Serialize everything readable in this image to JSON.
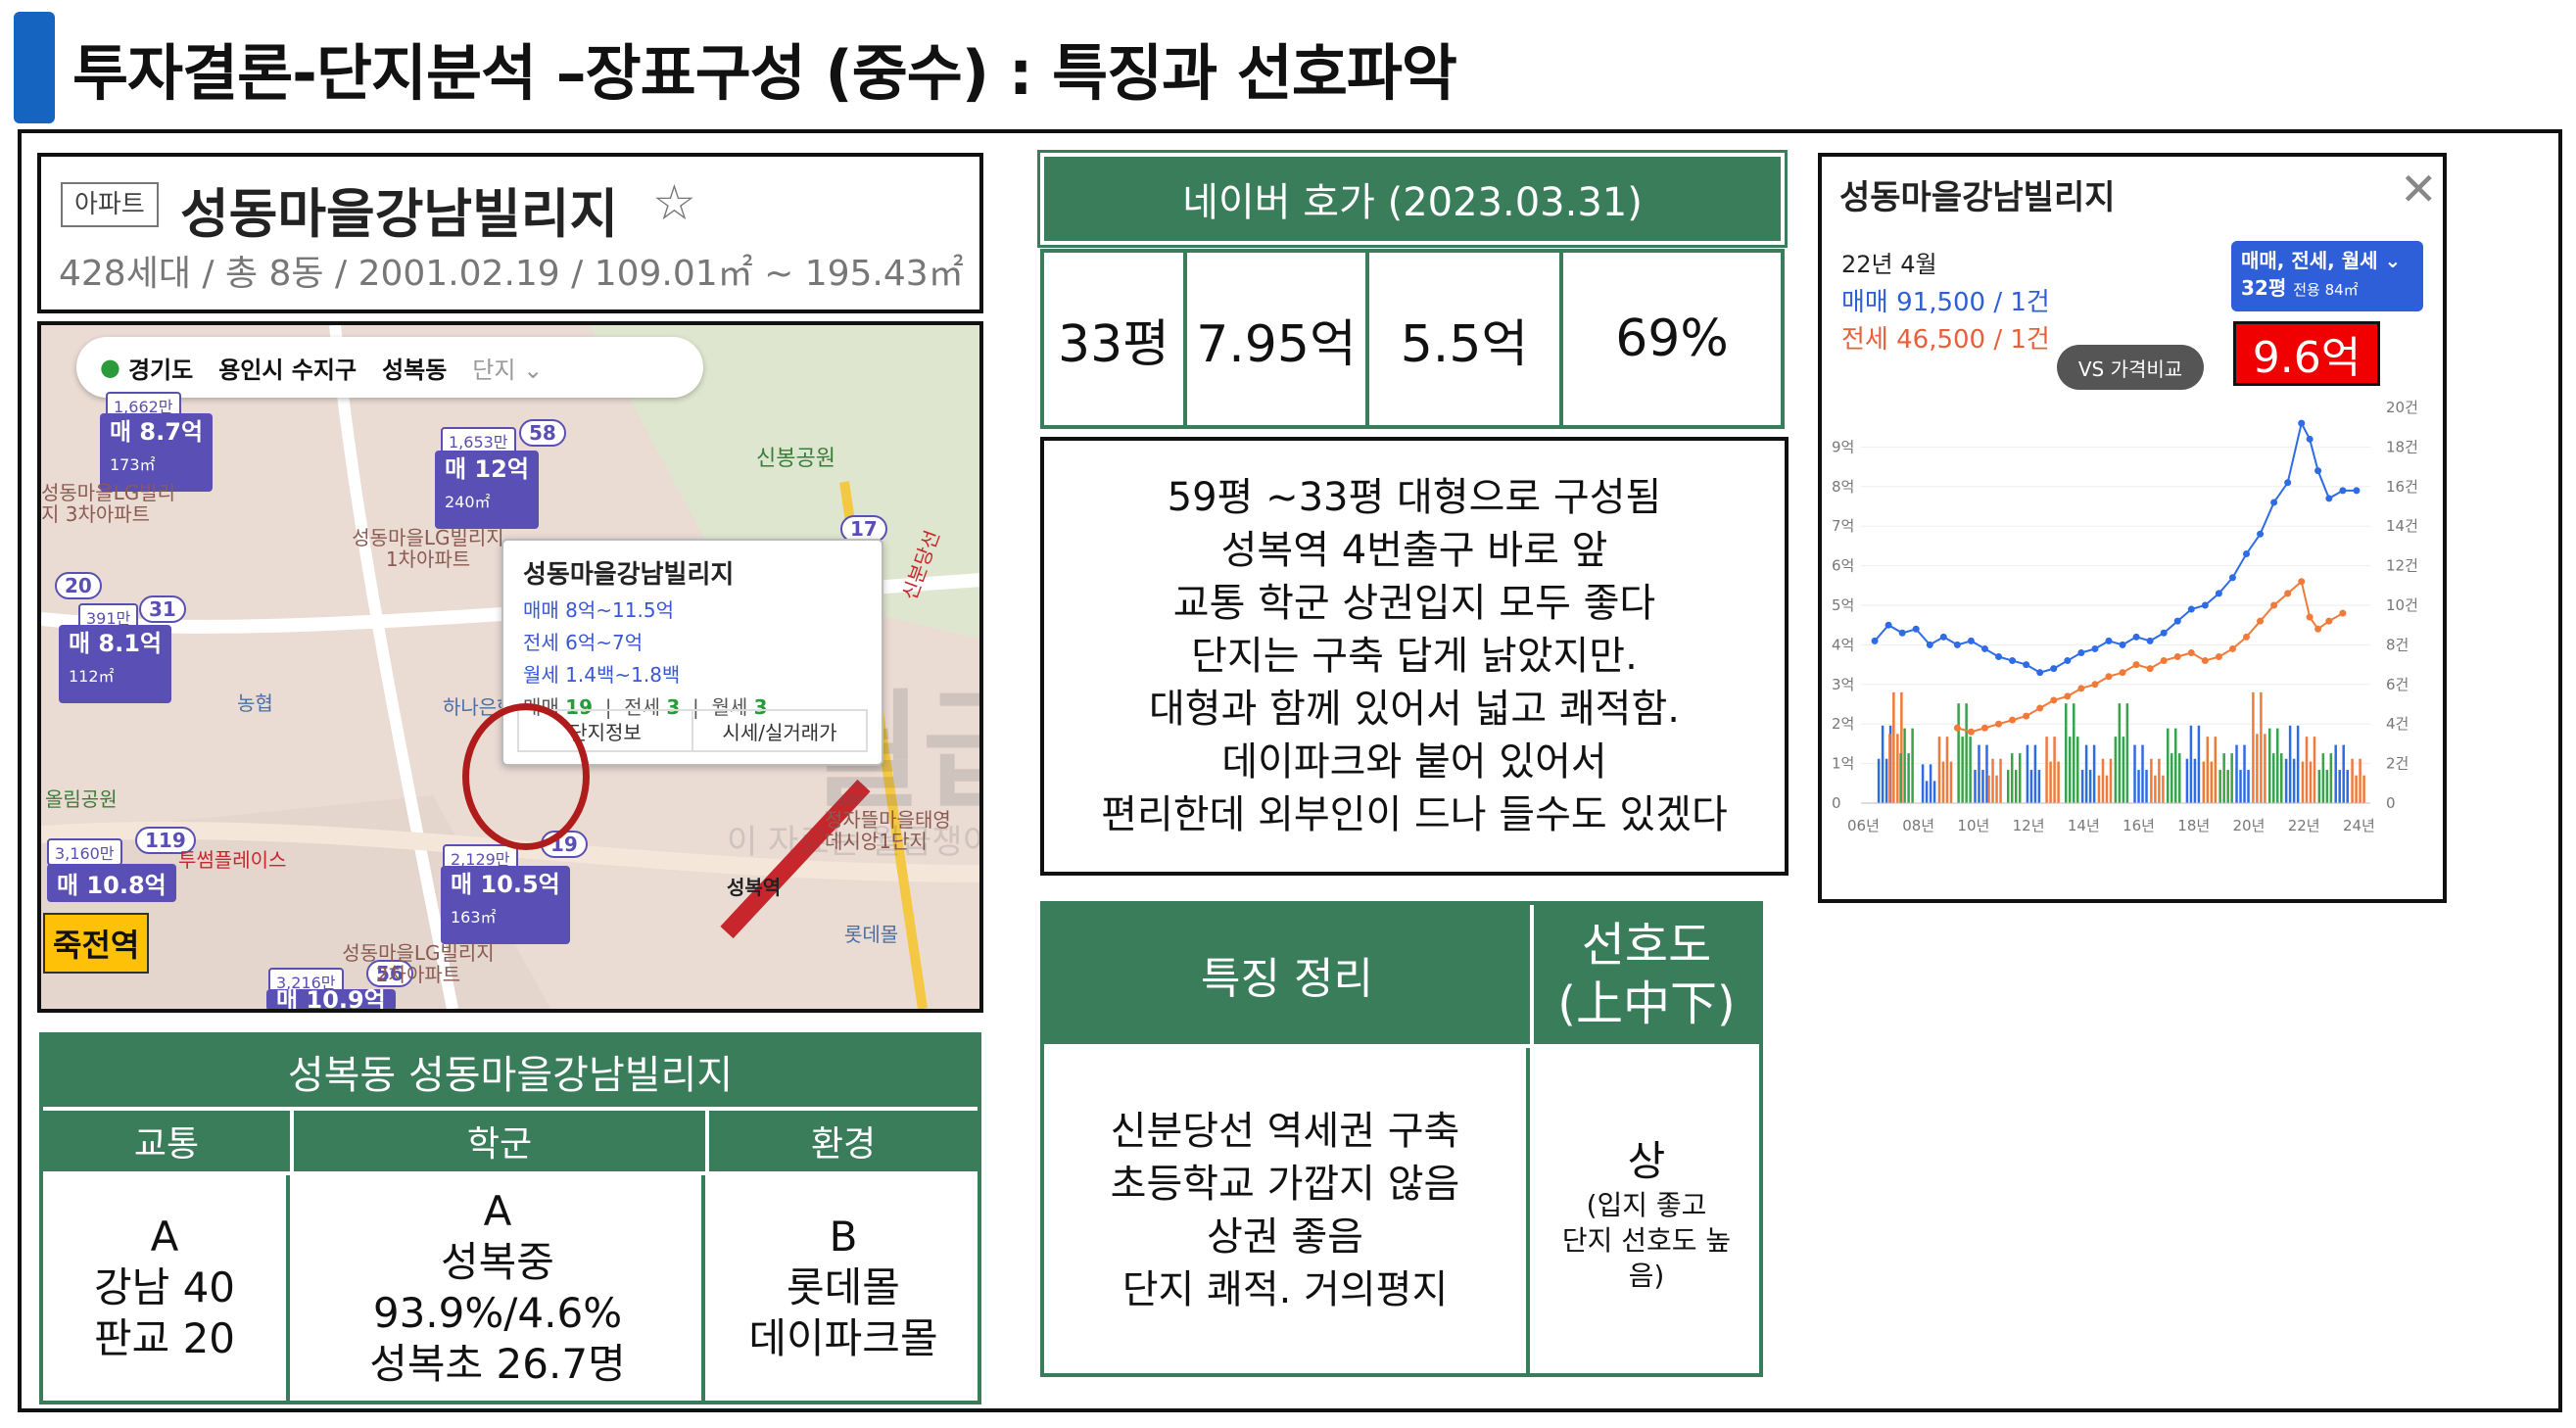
{
  "page": {
    "title": "투자결론-단지분석 –장표구성 (중수) : 특징과 선호파악"
  },
  "complex": {
    "badge": "아파트",
    "name": "성동마을강남빌리지",
    "star_icon": "star-outline-icon",
    "meta": "428세대 / 총 8동 / 2001.02.19 / 109.01㎡ ~ 195.43㎡"
  },
  "map": {
    "breadcrumb": [
      "경기도",
      "용인시 수지구",
      "성복동",
      "단지 ⌄"
    ],
    "popup": {
      "title": "성동마을강남빌리지",
      "sale": "매매 8억~11.5억",
      "jeonse": "전세 6억~7억",
      "monthly": "월세 1.4백~1.8백",
      "count_sale": "19",
      "count_jeonse": "3",
      "count_monthly": "3",
      "count_sale_label": "매매",
      "count_jeonse_label": "전세",
      "count_monthly_label": "월세",
      "btn_info": "단지정보",
      "btn_price": "시세/실거래가"
    },
    "price_tags": [
      {
        "sub": "1,662만",
        "price": "매 8.7억",
        "area": "173㎡"
      },
      {
        "sub": "1,653만",
        "price": "매 12억",
        "area": "240㎡",
        "badge": "58"
      },
      {
        "sub": "391만",
        "price": "매 8.1억",
        "area": "112㎡"
      },
      {
        "sub": "3,160만",
        "price": "매 10.8억",
        "badge": "119"
      },
      {
        "sub": "2,129만",
        "price": "매 10.5억",
        "area": "163㎡",
        "badge": "19"
      },
      {
        "sub": "3,216만",
        "price": "매 10.9억",
        "badge": "56"
      }
    ],
    "badges": [
      "20",
      "31",
      "17"
    ],
    "places": [
      "성동마을LG빌리지 3차아파트",
      "성동마을LG빌리지 1차아파트",
      "신봉공원",
      "농협",
      "하나은행",
      "올림공원",
      "투썸플레이스",
      "성복역",
      "신분당선",
      "롯데몰",
      "성동마을LG빌리지 2차아파트",
      "정자뜰마을태영 데시앙1단지"
    ],
    "station_label": "죽전역",
    "watermark": "월급쟁이부자들",
    "watermark_sub": "이 자료는 월급쟁이부자들의 소중한 자산입니다"
  },
  "score_table": {
    "title": "성복동 성동마을강남빌리지",
    "headers": [
      "교통",
      "학군",
      "환경"
    ],
    "traffic": [
      "A",
      "강남 40",
      "판교 20"
    ],
    "school": [
      "A",
      "성복중",
      "93.9%/4.6%",
      "성복초 26.7명"
    ],
    "environment": [
      "B",
      "롯데몰",
      "데이파크몰"
    ]
  },
  "naver": {
    "header": "네이버 호가 (2023.03.31)",
    "cells": [
      "33평",
      "7.95억",
      "5.5억",
      "69%"
    ]
  },
  "description": [
    "59평 ~33평 대형으로 구성됨",
    "성복역 4번출구 바로 앞",
    "교통 학군 상권입지 모두 좋다",
    "단지는 구축 답게 낡았지만.",
    "대형과 함께 있어서 넓고 쾌적함.",
    "데이파크와 붙어 있어서",
    "편리한데 외부인이 드나 들수도 있겠다"
  ],
  "features": {
    "header": "특징 정리",
    "pref_header_1": "선호도",
    "pref_header_2": "(上中下)",
    "lines": [
      "신분당선  역세권 구축",
      "초등학교 가깝지 않음",
      "상권 좋음",
      "단지 쾌적. 거의평지"
    ],
    "grade": "상",
    "grade_note": [
      "(입지 좋고",
      "단지 선호도 높",
      "음)"
    ]
  },
  "chart_panel": {
    "title": "성동마을강남빌리지",
    "date": "22년 4월",
    "sale": "매매 91,500 / 1건",
    "jeonse": "전세 46,500 / 1건",
    "filter_line1": "매매, 전세, 월세 ⌄",
    "filter_line2": "32평",
    "filter_line2_small": "전용 84㎡",
    "compare_btn": "VS 가격비교",
    "callout": "9.6억"
  },
  "chart_data": {
    "type": "line",
    "title": "성동마을강남빌리지",
    "x": [
      "06년",
      "08년",
      "10년",
      "12년",
      "14년",
      "16년",
      "18년",
      "20년",
      "22년",
      "24년"
    ],
    "y_left_ticks": [
      "0",
      "1억",
      "2억",
      "3억",
      "4억",
      "5억",
      "6억",
      "7억",
      "8억",
      "9억"
    ],
    "y_right_ticks": [
      "0",
      "2건",
      "4건",
      "6건",
      "8건",
      "10건",
      "12건",
      "14건",
      "16건",
      "18건",
      "20건"
    ],
    "ylim": [
      0,
      10
    ],
    "series": [
      {
        "name": "매매",
        "color": "#2e6be6",
        "x": [
          2006.5,
          2007.0,
          2007.5,
          2008.0,
          2008.5,
          2009.0,
          2009.5,
          2010.0,
          2010.5,
          2011.0,
          2011.5,
          2012.0,
          2012.5,
          2013.0,
          2013.5,
          2014.0,
          2014.5,
          2015.0,
          2015.5,
          2016.0,
          2016.5,
          2017.0,
          2017.5,
          2018.0,
          2018.5,
          2019.0,
          2019.5,
          2020.0,
          2020.5,
          2021.0,
          2021.5,
          2022.0,
          2022.3,
          2022.6,
          2023.0,
          2023.5,
          2024.0
        ],
        "values": [
          4.1,
          4.5,
          4.3,
          4.4,
          4.0,
          4.2,
          4.0,
          4.1,
          3.9,
          3.7,
          3.6,
          3.5,
          3.3,
          3.4,
          3.6,
          3.8,
          3.9,
          4.1,
          4.0,
          4.2,
          4.1,
          4.3,
          4.6,
          4.9,
          5.0,
          5.3,
          5.7,
          6.3,
          6.8,
          7.6,
          8.1,
          9.6,
          9.2,
          8.4,
          7.7,
          7.9,
          7.9
        ]
      },
      {
        "name": "전세",
        "color": "#f07a3a",
        "x": [
          2009.5,
          2010.0,
          2010.5,
          2011.0,
          2011.5,
          2012.0,
          2012.5,
          2013.0,
          2013.5,
          2014.0,
          2014.5,
          2015.0,
          2015.5,
          2016.0,
          2016.5,
          2017.0,
          2017.5,
          2018.0,
          2018.5,
          2019.0,
          2019.5,
          2020.0,
          2020.5,
          2021.0,
          2021.5,
          2022.0,
          2022.3,
          2022.6,
          2023.0,
          2023.5
        ],
        "values": [
          1.9,
          1.8,
          1.9,
          2.0,
          2.1,
          2.2,
          2.4,
          2.6,
          2.7,
          2.9,
          3.0,
          3.2,
          3.3,
          3.5,
          3.4,
          3.6,
          3.7,
          3.8,
          3.6,
          3.7,
          3.9,
          4.2,
          4.6,
          5.0,
          5.3,
          5.6,
          4.7,
          4.4,
          4.6,
          4.8
        ]
      }
    ],
    "volume": {
      "name": "거래량",
      "colors": [
        "#2e6be6",
        "#f07a3a",
        "#3aa34a"
      ],
      "x": [
        2006.6,
        2007.0,
        2007.4,
        2008.2,
        2008.8,
        2009.5,
        2010.1,
        2010.6,
        2011.3,
        2012.0,
        2012.7,
        2013.4,
        2014.0,
        2014.6,
        2015.2,
        2015.9,
        2016.5,
        2017.1,
        2017.8,
        2018.4,
        2019.0,
        2019.6,
        2020.2,
        2020.8,
        2021.4,
        2022.0,
        2022.6,
        2023.2,
        2023.8
      ],
      "values": [
        4,
        5,
        3,
        2,
        3,
        4,
        3,
        2,
        2,
        3,
        3,
        4,
        3,
        2,
        4,
        3,
        2,
        3,
        4,
        3,
        2,
        3,
        5,
        3,
        4,
        3,
        2,
        3,
        2
      ]
    }
  }
}
